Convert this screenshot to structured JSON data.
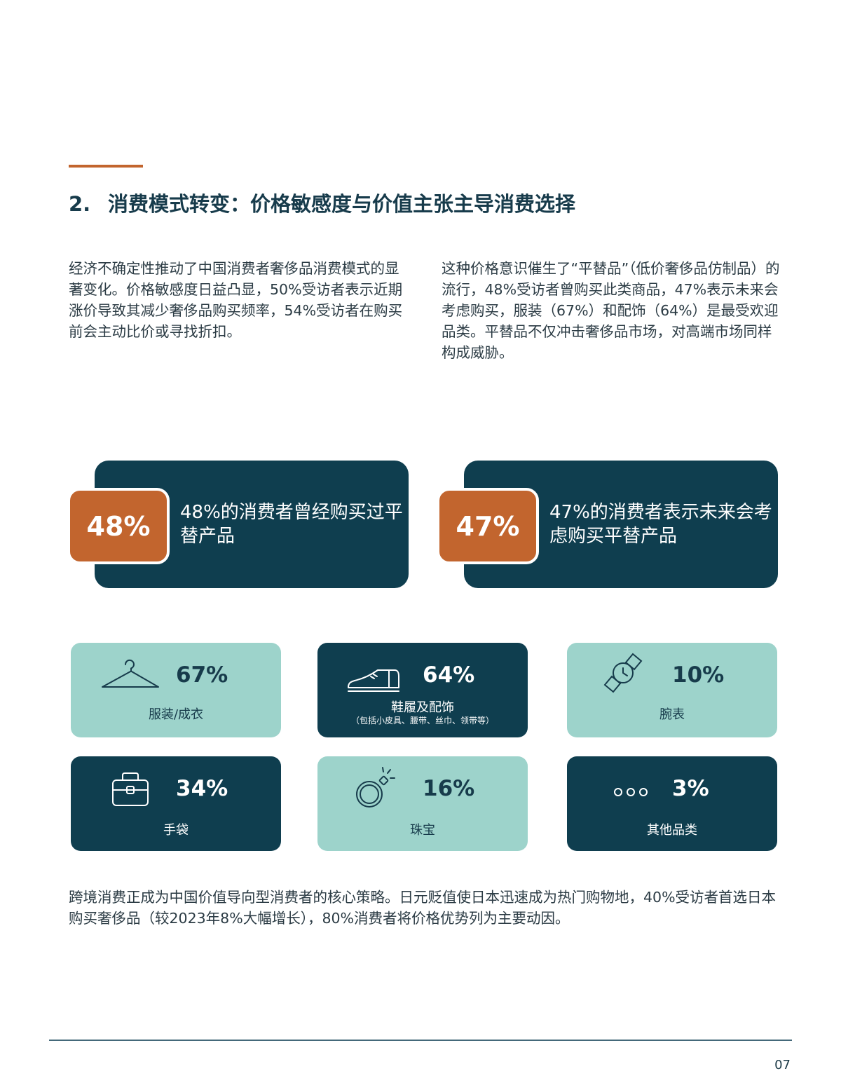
{
  "section": {
    "number": "2.",
    "title": "消费模式转变：价格敏感度与价值主张主导消费选择"
  },
  "paragraphs": {
    "left": "经济不确定性推动了中国消费者奢侈品消费模式的显著变化。价格敏感度日益凸显，50%受访者表示近期涨价导致其减少奢侈品购买频率，54%受访者在购买前会主动比价或寻找折扣。",
    "right": "这种价格意识催生了“平替品”（低价奢侈品仿制品）的流行，48%受访者曾购买此类商品，47%表示未来会考虑购买，服装（67%）和配饰（64%）是最受欢迎品类。平替品不仅冲击奢侈品市场，对高端市场同样构成威胁。"
  },
  "stats": [
    {
      "value": "48%",
      "text": "48%的消费者曾经购买过平替产品"
    },
    {
      "value": "47%",
      "text": "47%的消费者表示未来会考虑购买平替产品"
    }
  ],
  "categories": [
    {
      "pct": "67%",
      "label": "服装/成衣",
      "sub": "",
      "icon": "hanger-icon"
    },
    {
      "pct": "64%",
      "label": "鞋履及配饰",
      "sub": "（包括小皮具、腰带、丝巾、领带等）",
      "icon": "shoe-icon"
    },
    {
      "pct": "10%",
      "label": "腕表",
      "sub": "",
      "icon": "watch-icon"
    },
    {
      "pct": "34%",
      "label": "手袋",
      "sub": "",
      "icon": "handbag-icon"
    },
    {
      "pct": "16%",
      "label": "珠宝",
      "sub": "",
      "icon": "ring-icon"
    },
    {
      "pct": "3%",
      "label": "其他品类",
      "sub": "",
      "icon": "more-dots-icon"
    }
  ],
  "bottom_paragraph": "跨境消费正成为中国价值导向型消费者的核心策略。日元贬值使日本迅速成为热门购物地，40%受访者首选日本购买奢侈品（较2023年8%大幅增长），80%消费者将价格优势列为主要动因。",
  "page_number": "07",
  "colors": {
    "accent": "#c2652e",
    "dark_teal": "#0f3e4f",
    "light_teal": "#9dd3cb",
    "heading": "#173b4b"
  }
}
